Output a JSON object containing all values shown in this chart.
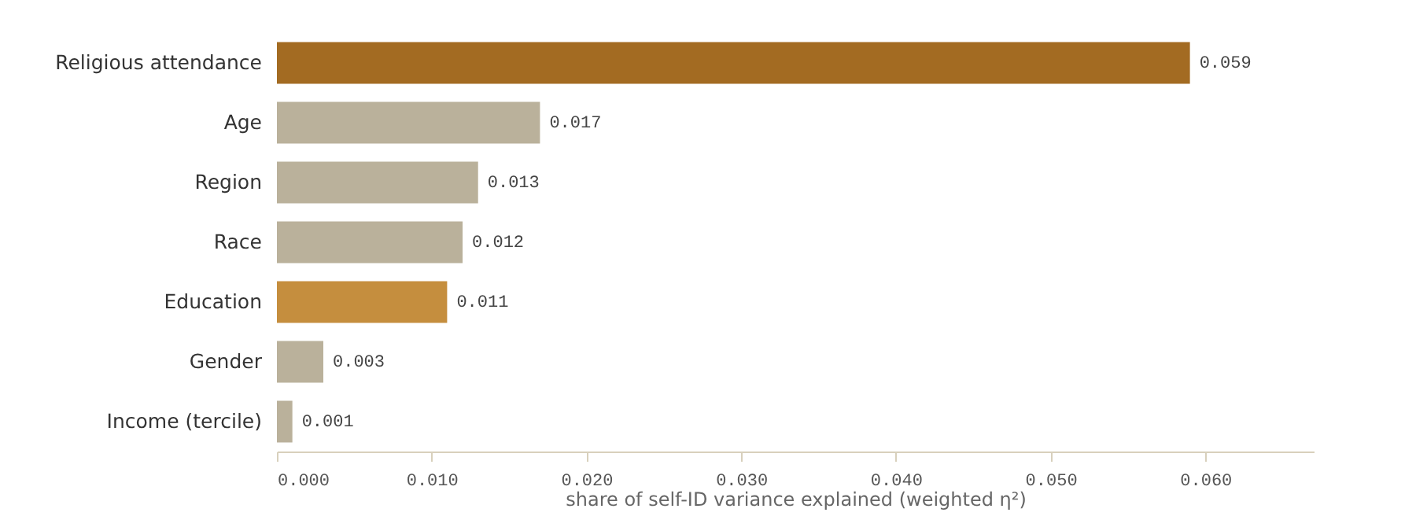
{
  "chart_data": {
    "type": "bar",
    "orientation": "horizontal",
    "xlabel": "share of self-ID variance explained (weighted η²)",
    "categories": [
      "Religious attendance",
      "Age",
      "Region",
      "Race",
      "Education",
      "Gender",
      "Income (tercile)"
    ],
    "values": [
      0.059,
      0.017,
      0.013,
      0.012,
      0.011,
      0.003,
      0.001
    ],
    "colors": [
      "#a36b22",
      "#bab19b",
      "#bab19b",
      "#bab19b",
      "#c58e3e",
      "#bab19b",
      "#bab19b"
    ],
    "xlim": [
      0,
      0.067
    ],
    "xticks": [
      {
        "value": 0,
        "label": "0.000"
      },
      {
        "value": 0.01,
        "label": "0.010"
      },
      {
        "value": 0.02,
        "label": "0.020"
      },
      {
        "value": 0.03,
        "label": "0.030"
      },
      {
        "value": 0.04,
        "label": "0.040"
      },
      {
        "value": 0.05,
        "label": "0.050"
      },
      {
        "value": 0.06,
        "label": "0.060"
      }
    ],
    "data_labels": true
  }
}
